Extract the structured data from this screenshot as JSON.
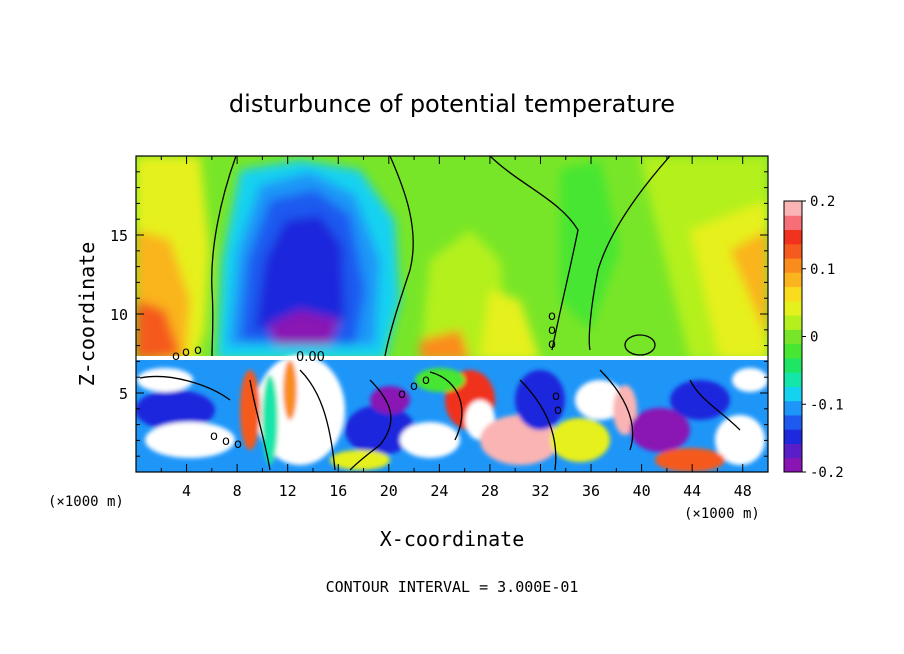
{
  "chart_data": {
    "type": "heatmap",
    "title": "disturbunce of potential temperature",
    "xlabel": "X-coordinate",
    "ylabel": "Z-coordinate",
    "x_unit_label": "(×1000 m)",
    "z_unit_label": "(×1000 m)",
    "x_ticks": [
      "4",
      "8",
      "12",
      "16",
      "20",
      "24",
      "28",
      "32",
      "36",
      "40",
      "44",
      "48"
    ],
    "z_ticks": [
      "5",
      "10",
      "15"
    ],
    "xlim": [
      0,
      50
    ],
    "zlim": [
      0,
      20
    ],
    "colorbar": {
      "ticks": [
        "0.2",
        "0.1",
        "0",
        "-0.1",
        "-0.2"
      ],
      "range": [
        -0.2,
        0.2
      ],
      "colors": [
        "#8a14b4",
        "#5a1ec8",
        "#1e28dc",
        "#1e5af0",
        "#1e96f8",
        "#14d2f0",
        "#14e6aa",
        "#1ee664",
        "#46e632",
        "#78e628",
        "#b4f01e",
        "#e6f01e",
        "#fadc1e",
        "#fab41e",
        "#fa8c1e",
        "#f55a1e",
        "#f0321e",
        "#f56e78",
        "#fab4b4"
      ]
    },
    "contour_labels": [
      "0.00"
    ],
    "footer": "CONTOUR INTERVAL = 3.000E-01"
  }
}
